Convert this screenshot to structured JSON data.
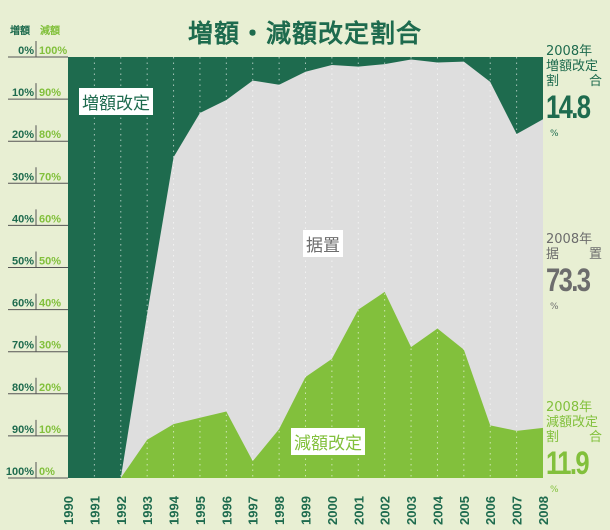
{
  "title": "増額・減額改定割合",
  "axis_headers": {
    "increase": "増額",
    "decrease": "減額"
  },
  "colors": {
    "increase": "#1e6b4e",
    "unchanged": "#dedede",
    "decrease": "#82c03c",
    "background": "#e8efd3",
    "unchanged_text": "#6d6d6d"
  },
  "chart_data": {
    "type": "area",
    "stacked": true,
    "title": "増額・減額改定割合",
    "x": [
      1990,
      1991,
      1992,
      1993,
      1994,
      1995,
      1996,
      1997,
      1998,
      1999,
      2000,
      2001,
      2002,
      2003,
      2004,
      2005,
      2006,
      2007,
      2008
    ],
    "left_ticks_increase": [
      "0%",
      "10%",
      "20%",
      "30%",
      "40%",
      "50%",
      "60%",
      "70%",
      "80%",
      "90%",
      "100%"
    ],
    "left_ticks_decrease": [
      "100%",
      "90%",
      "80%",
      "70%",
      "60%",
      "50%",
      "40%",
      "30%",
      "20%",
      "10%",
      "0%"
    ],
    "ylim": [
      0,
      100
    ],
    "grid": "vertical dotted",
    "series": [
      {
        "name": "増額改定",
        "values": [
          100,
          100,
          100,
          61,
          23.8,
          13.3,
          10.2,
          5.6,
          6.6,
          3.5,
          1.9,
          2.3,
          1.7,
          0.6,
          1.3,
          1.1,
          5.9,
          18.3,
          14.8
        ]
      },
      {
        "name": "据置",
        "values": [
          0,
          0,
          0,
          29.9,
          63.4,
          72.4,
          74,
          90.4,
          81.8,
          72.5,
          69.8,
          57.7,
          54.1,
          68.3,
          63.2,
          68.4,
          81.6,
          70.5,
          73.3
        ]
      },
      {
        "name": "減額改定",
        "values": [
          0,
          0,
          0,
          9.1,
          12.8,
          14.3,
          15.8,
          4,
          11.6,
          24,
          28.3,
          40,
          44.2,
          31.1,
          35.5,
          30.5,
          12.5,
          11.2,
          11.9
        ]
      }
    ]
  },
  "side_labels": [
    {
      "year": "2008年",
      "label1": "増額改定",
      "label2a": "割",
      "label2b": "合",
      "value": "14.8",
      "unit": "%"
    },
    {
      "year": "2008年",
      "label1": "",
      "label2a": "据",
      "label2b": "置",
      "value": "73.3",
      "unit": "%"
    },
    {
      "year": "2008年",
      "label1": "減額改定",
      "label2a": "割",
      "label2b": "合",
      "value": "11.9",
      "unit": "%"
    }
  ]
}
